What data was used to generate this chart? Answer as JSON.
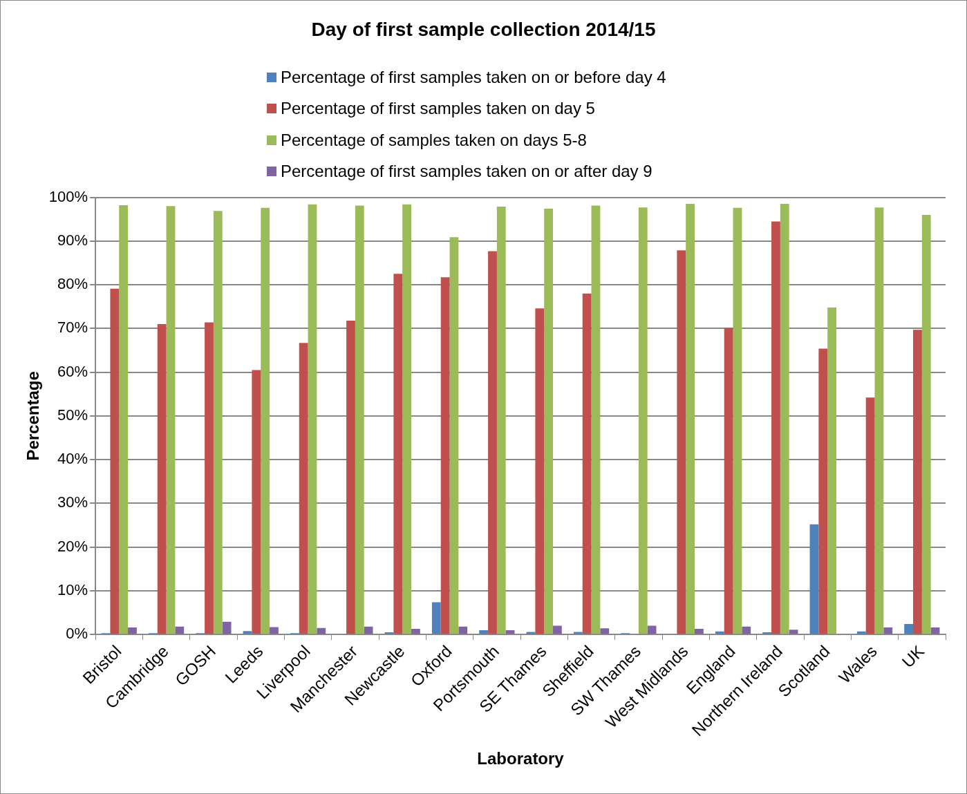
{
  "chart_data": {
    "type": "bar",
    "title": "Day of first sample collection 2014/15",
    "xlabel": "Laboratory",
    "ylabel": "Percentage",
    "categories": [
      "Bristol",
      "Cambridge",
      "GOSH",
      "Leeds",
      "Liverpool",
      "Manchester",
      "Newcastle",
      "Oxford",
      "Portsmouth",
      "SE Thames",
      "Sheffield",
      "SW Thames",
      "West Midlands",
      "England",
      "Northern Ireland",
      "Scotland",
      "Wales",
      "UK"
    ],
    "series": [
      {
        "name": "Percentage of first samples taken on or before day 4",
        "color": "#4f81bd",
        "values": [
          0.3,
          0.3,
          0.3,
          0.8,
          0.3,
          null,
          0.5,
          7.4,
          1.0,
          0.6,
          0.6,
          0.3,
          null,
          0.7,
          0.5,
          25.2,
          0.7,
          2.4
        ]
      },
      {
        "name": "Percentage of first samples taken on day 5",
        "color": "#c0504d",
        "values": [
          79.1,
          71.0,
          71.4,
          60.5,
          66.7,
          71.8,
          82.5,
          81.7,
          87.7,
          74.6,
          78.0,
          0,
          87.9,
          70.1,
          94.5,
          65.4,
          54.2,
          69.7
        ]
      },
      {
        "name": "Percentage of samples taken on days 5-8",
        "color": "#9bbb59",
        "values": [
          98.2,
          98.0,
          96.9,
          97.6,
          98.4,
          98.1,
          98.4,
          90.9,
          97.9,
          97.4,
          98.1,
          97.7,
          98.5,
          97.6,
          98.5,
          74.8,
          97.7,
          96.0
        ]
      },
      {
        "name": "Percentage of first samples taken on or after day 9",
        "color": "#8064a2",
        "values": [
          1.6,
          1.8,
          2.9,
          1.7,
          1.5,
          1.8,
          1.3,
          1.8,
          1.0,
          2.0,
          1.4,
          2.0,
          1.3,
          1.8,
          1.1,
          null,
          1.6,
          1.6
        ]
      }
    ],
    "ylim": [
      0,
      100
    ],
    "yticks": [
      {
        "value": 0,
        "label": "0%"
      },
      {
        "value": 10,
        "label": "10%"
      },
      {
        "value": 20,
        "label": "20%"
      },
      {
        "value": 30,
        "label": "30%"
      },
      {
        "value": 40,
        "label": "40%"
      },
      {
        "value": 50,
        "label": "50%"
      },
      {
        "value": 60,
        "label": "60%"
      },
      {
        "value": 70,
        "label": "70%"
      },
      {
        "value": 80,
        "label": "80%"
      },
      {
        "value": 90,
        "label": "90%"
      },
      {
        "value": 100,
        "label": "100%"
      }
    ],
    "grid": "y",
    "legend": "top"
  }
}
